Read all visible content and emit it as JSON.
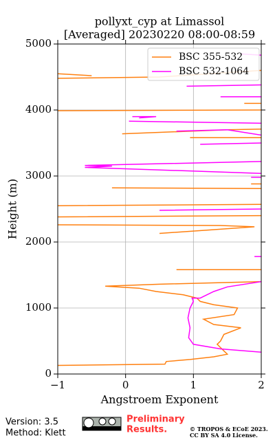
{
  "chart_data": {
    "type": "line",
    "title": "pollyxt_cyp at Limassol",
    "subtitle": "[Averaged] 20230220 08:00-08:59",
    "xlabel": "Angstroem Exponent",
    "ylabel": "Height (m)",
    "xlim": [
      -1,
      2
    ],
    "ylim": [
      0,
      5000
    ],
    "xticks": [
      {
        "value": -1,
        "label": "−1"
      },
      0,
      1,
      2
    ],
    "yticks": [
      0,
      1000,
      2000,
      3000,
      4000,
      5000
    ],
    "grid": true,
    "legend": "upper right",
    "series": [
      {
        "name": "BSC 355-532",
        "color": "#ff7f0e",
        "x": [
          -1,
          0.58,
          0.6,
          0.95,
          1.3,
          1.5,
          1.45,
          1.4,
          1.35,
          1.4,
          1.45,
          1.7,
          1.3,
          1.15,
          1.6,
          1.65,
          1.3,
          1.1,
          1.05,
          0.85,
          0.45,
          0.2,
          -0.3,
          0.5,
          2,
          null,
          0.75,
          2,
          null,
          0.5,
          1.2,
          1.9,
          1.4,
          -1,
          null,
          -1,
          2,
          null,
          -1,
          2,
          null,
          -0.2,
          2,
          null,
          1.85,
          2,
          null,
          0.95,
          2,
          null,
          -0.05,
          1.5,
          2,
          null,
          -1,
          2,
          null,
          1.75,
          2,
          null,
          -1,
          0.5,
          2,
          null,
          -1,
          -0.5
        ],
        "y": [
          130,
          150,
          190,
          220,
          260,
          300,
          350,
          400,
          450,
          500,
          600,
          700,
          750,
          830,
          900,
          1000,
          1050,
          1100,
          1150,
          1200,
          1250,
          1300,
          1330,
          1360,
          1400,
          null,
          1580,
          1580,
          null,
          2130,
          2180,
          2230,
          2250,
          2260,
          null,
          2380,
          2400,
          null,
          2550,
          2570,
          null,
          2820,
          2810,
          null,
          2880,
          2880,
          null,
          3580,
          3580,
          null,
          3640,
          3700,
          3710,
          null,
          3990,
          4000,
          null,
          4100,
          4100,
          null,
          4480,
          4500,
          4600,
          null,
          4550,
          4520
        ]
      },
      {
        "name": "BSC 532-1064",
        "color": "#ff00ff",
        "x": [
          2,
          1.4,
          1.0,
          0.93,
          0.95,
          0.92,
          0.95,
          1.0,
          0.98,
          1.1,
          1.3,
          1.5,
          2,
          null,
          1.9,
          2,
          null,
          0.5,
          2,
          null,
          1.85,
          2,
          null,
          2,
          -0.6,
          -0.2,
          -0.6,
          2,
          null,
          1.1,
          2,
          null,
          0.75,
          1.5,
          2,
          null,
          0.05,
          2,
          null,
          0.1,
          0.45,
          0.2,
          null,
          1.4,
          2,
          null,
          0.9,
          2,
          null,
          1.7,
          2
        ],
        "y": [
          330,
          380,
          450,
          550,
          700,
          850,
          1000,
          1100,
          1150,
          1150,
          1250,
          1320,
          1400,
          null,
          1780,
          1780,
          null,
          2480,
          2500,
          null,
          2980,
          2980,
          null,
          3220,
          3160,
          3150,
          3130,
          3040,
          null,
          3480,
          3500,
          null,
          3680,
          3700,
          3620,
          null,
          3830,
          3800,
          null,
          3900,
          3900,
          3880,
          null,
          4200,
          4200,
          null,
          4360,
          4380,
          null,
          4850,
          4830
        ]
      }
    ],
    "footer": {
      "version": "Version: 3.5",
      "method": "Method: Klett",
      "preliminary": [
        "Preliminary",
        "Results."
      ],
      "copyright": "© TROPOS & ECoE 2023.",
      "license": "CC BY SA 4.0 License."
    }
  }
}
